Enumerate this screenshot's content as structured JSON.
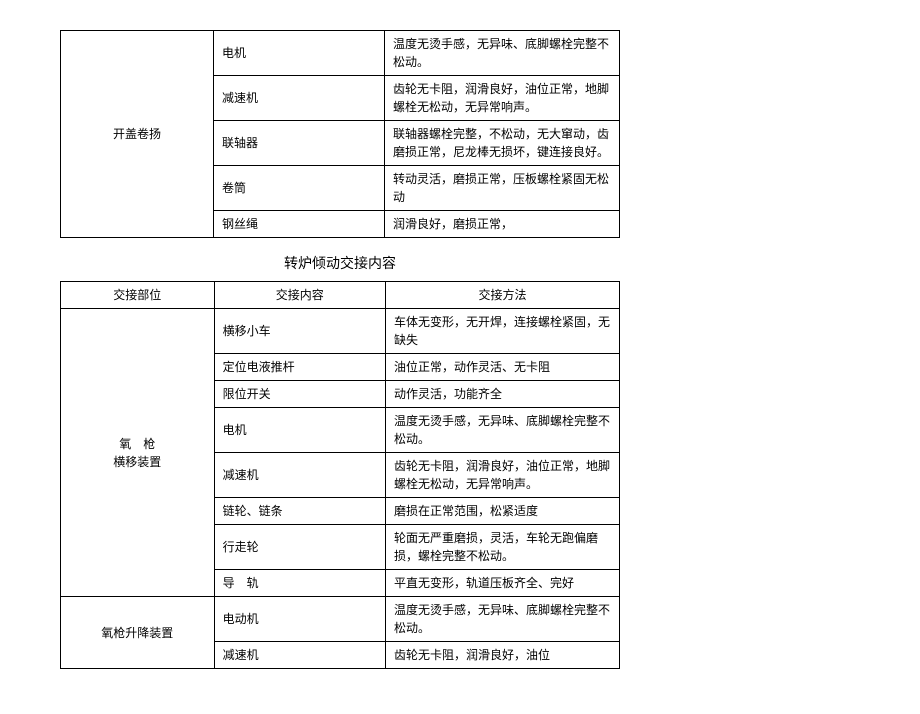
{
  "table1": {
    "group_label": "开盖卷扬",
    "rows": [
      {
        "item": "电机",
        "method": "温度无烫手感，无异味、底脚螺栓完整不松动。"
      },
      {
        "item": "减速机",
        "method": "齿轮无卡阻，润滑良好，油位正常，地脚螺栓无松动，无异常响声。"
      },
      {
        "item": "联轴器",
        "method": "联轴器螺栓完整，不松动，无大窜动，齿磨损正常，尼龙棒无损坏，键连接良好。"
      },
      {
        "item": "卷筒",
        "method": "转动灵活，磨损正常，压板螺栓紧固无松动"
      },
      {
        "item": "钢丝绳",
        "method": "润滑良好，磨损正常，"
      }
    ]
  },
  "section_title": "转炉倾动交接内容",
  "table2": {
    "headers": {
      "c1": "交接部位",
      "c2": "交接内容",
      "c3": "交接方法"
    },
    "group1_label": "氧　枪\n横移装置",
    "group1_rows": [
      {
        "item": "横移小车",
        "method": "车体无变形，无开焊，连接螺栓紧固，无缺失"
      },
      {
        "item": "定位电液推杆",
        "method": "油位正常，动作灵活、无卡阻"
      },
      {
        "item": "限位开关",
        "method": "动作灵活，功能齐全"
      },
      {
        "item": "电机",
        "method": "温度无烫手感，无异味、底脚螺栓完整不松动。"
      },
      {
        "item": "减速机",
        "method": "齿轮无卡阻，润滑良好，油位正常，地脚螺栓无松动，无异常响声。"
      },
      {
        "item": "链轮、链条",
        "method": "磨损在正常范围，松紧适度"
      },
      {
        "item": "行走轮",
        "method": "轮面无严重磨损，灵活，车轮无跑偏磨损，螺栓完整不松动。"
      },
      {
        "item": "导　轨",
        "method": "平直无变形，轨道压板齐全、完好"
      }
    ],
    "group2_label": "氧枪升降装置",
    "group2_rows": [
      {
        "item": "电动机",
        "method": "温度无烫手感，无异味、底脚螺栓完整不松动。"
      },
      {
        "item": "减速机",
        "method": "齿轮无卡阻，润滑良好，油位"
      }
    ]
  }
}
